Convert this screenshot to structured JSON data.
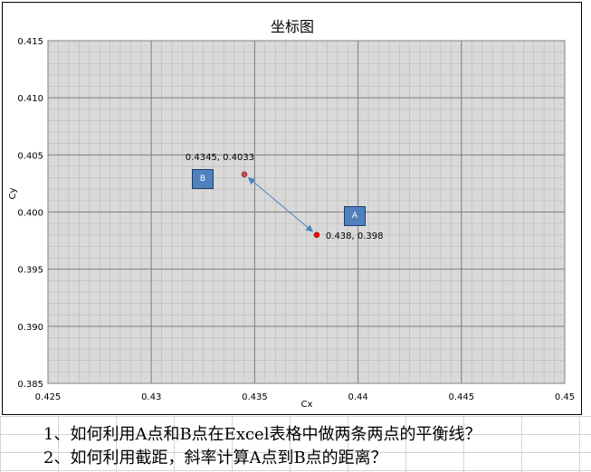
{
  "chart_data": {
    "type": "scatter",
    "title": "坐标图",
    "xlabel": "Cx",
    "ylabel": "Cy",
    "xlim": [
      0.425,
      0.45
    ],
    "ylim": [
      0.385,
      0.415
    ],
    "x_ticks": [
      "0.425",
      "0.43",
      "0.435",
      "0.44",
      "0.445",
      "0.45"
    ],
    "y_ticks": [
      "0.415",
      "0.410",
      "0.405",
      "0.400",
      "0.395",
      "0.390",
      "0.385"
    ],
    "grid": true,
    "plot_background": "#d9d9d9",
    "points": [
      {
        "id": "B",
        "x": 0.4345,
        "y": 0.4033,
        "label": "0.4345, 0.4033",
        "marker_color": "#c0504d",
        "badge": "B"
      },
      {
        "id": "A",
        "x": 0.438,
        "y": 0.398,
        "label": "0.438, 0.398",
        "marker_color": "#ff0000",
        "badge": "A"
      }
    ],
    "annotation": {
      "type": "double-arrow",
      "from": "B",
      "to": "A",
      "color": "#4f81bd"
    }
  },
  "questions": [
    "1、如何利用A点和B点在Excel表格中做两条两点的平衡线？",
    "2、如何利用截距，斜率计算A点到B点的距离？"
  ]
}
